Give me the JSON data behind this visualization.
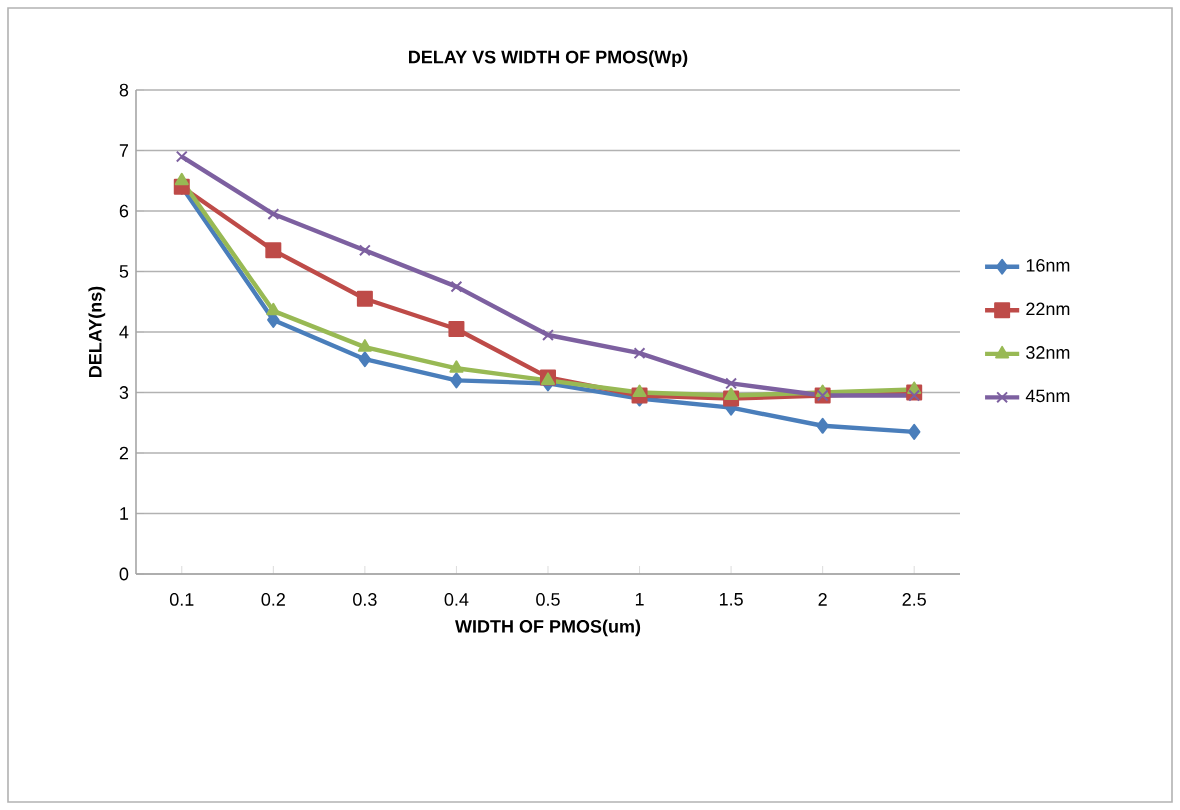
{
  "chart_data": {
    "type": "line",
    "title": "DELAY VS WIDTH OF PMOS(Wp)",
    "xlabel": "WIDTH OF PMOS(um)",
    "ylabel": "DELAY(ns)",
    "categories": [
      "0.1",
      "0.2",
      "0.3",
      "0.4",
      "0.5",
      "1",
      "1.5",
      "2",
      "2.5"
    ],
    "series": [
      {
        "name": "16nm",
        "color": "#4a7ebb",
        "marker": "diamond",
        "values": [
          6.4,
          4.2,
          3.55,
          3.2,
          3.15,
          2.9,
          2.75,
          2.45,
          2.35
        ]
      },
      {
        "name": "22nm",
        "color": "#be4b48",
        "marker": "square",
        "values": [
          6.4,
          5.35,
          4.55,
          4.05,
          3.25,
          2.95,
          2.9,
          2.95,
          3.0
        ]
      },
      {
        "name": "32nm",
        "color": "#98b954",
        "marker": "triangle",
        "values": [
          6.5,
          4.35,
          3.75,
          3.4,
          3.2,
          3.0,
          2.95,
          3.0,
          3.05
        ]
      },
      {
        "name": "45nm",
        "color": "#7d60a0",
        "marker": "cross",
        "values": [
          6.9,
          5.95,
          5.35,
          4.75,
          3.95,
          3.65,
          3.15,
          2.95,
          2.95
        ]
      }
    ],
    "ylim": [
      0,
      8
    ],
    "yticks": [
      0,
      1,
      2,
      3,
      4,
      5,
      6,
      7,
      8
    ],
    "grid": "y",
    "legend": "right"
  }
}
